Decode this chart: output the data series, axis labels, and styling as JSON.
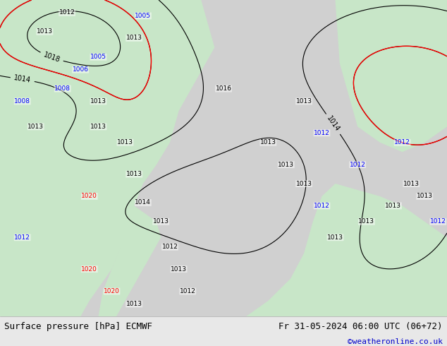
{
  "title_left": "Surface pressure [hPa] ECMWF",
  "title_right": "Fr 31-05-2024 06:00 UTC (06+72)",
  "credit": "©weatheronline.co.uk",
  "bg_color": "#e8e8e8",
  "land_color": "#c8e6c8",
  "ocean_color": "#d0d0d0",
  "bottom_bar_color": "#f0f0f0",
  "text_color_left": "#000000",
  "text_color_right": "#000000",
  "credit_color": "#0000cc",
  "font_size_bottom": 9
}
